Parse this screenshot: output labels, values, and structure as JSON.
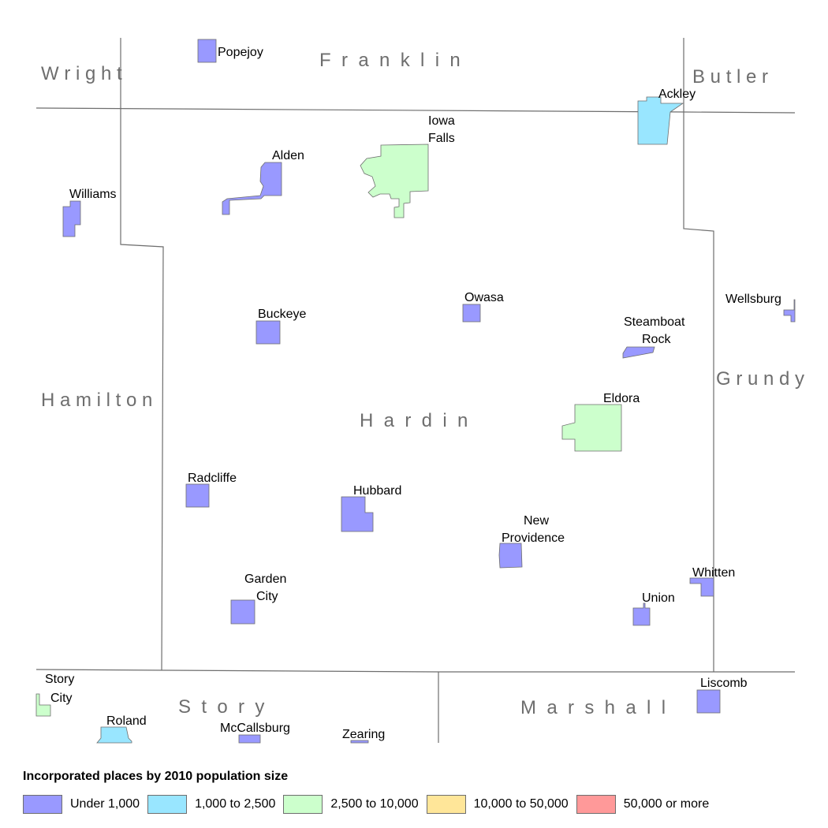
{
  "colors": {
    "under_1000": "#9999ff",
    "1000_to_2500": "#99e6ff",
    "2500_to_10000": "#ccffcc",
    "10000_to_50000": "#ffe699",
    "50000_or_more": "#ff9999",
    "boundary": "#6e6e6e",
    "county_label": "#6e6e6e"
  },
  "counties": {
    "wright": "W r i g h t",
    "franklin": "F  r  a  n  k  l  i  n",
    "butler": "B u t l e r",
    "hamilton": "H a m i l t o n",
    "hardin": "H  a  r  d  i  n",
    "grundy": "G r u n d y",
    "story": "S  t  o  r  y",
    "marshall": "M  a  r  s  h  a  l  l"
  },
  "places": {
    "popejoy": "Popejoy",
    "ackley": "Ackley",
    "iowa_falls_1": "Iowa",
    "iowa_falls_2": "Falls",
    "alden": "Alden",
    "williams": "Williams",
    "owasa": "Owasa",
    "wellsburg": "Wellsburg",
    "buckeye": "Buckeye",
    "steamboat_rock_1": "Steamboat",
    "steamboat_rock_2": "Rock",
    "eldora": "Eldora",
    "radcliffe": "Radcliffe",
    "hubbard": "Hubbard",
    "new_providence_1": "New",
    "new_providence_2": "Providence",
    "whitten": "Whitten",
    "garden_city_1": "Garden",
    "garden_city_2": "City",
    "union": "Union",
    "story_city_1": "Story",
    "story_city_2": "City",
    "liscomb": "Liscomb",
    "roland": "Roland",
    "mccallsburg": "McCallsburg",
    "zearing": "Zearing"
  },
  "legend": {
    "title": "Incorporated places by 2010 population size",
    "items": [
      {
        "label": "Under 1,000",
        "color": "#9999ff"
      },
      {
        "label": "1,000 to 2,500",
        "color": "#99e6ff"
      },
      {
        "label": "2,500 to 10,000",
        "color": "#ccffcc"
      },
      {
        "label": "10,000 to 50,000",
        "color": "#ffe699"
      },
      {
        "label": "50,000 or more",
        "color": "#ff9999"
      }
    ]
  }
}
